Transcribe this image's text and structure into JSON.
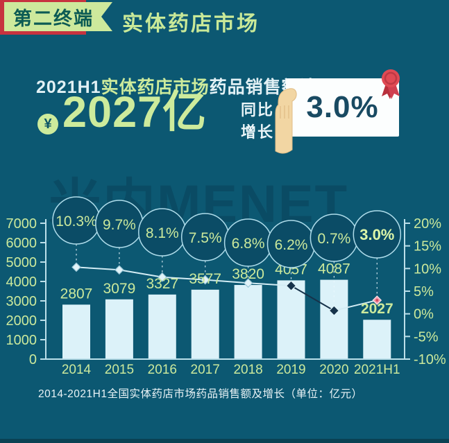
{
  "page": {
    "bg": "#0C5872",
    "accent_green": "#CBE99C",
    "bar_color": "#DCF2F9",
    "axis_color": "#BCE0EA",
    "red": "#C7333F",
    "line_light": "#D3ECF4",
    "line_dark": "#16324A",
    "marker_pink": "#F29BAD"
  },
  "header": {
    "tab_label": "第二终端",
    "title": "实体药店市场"
  },
  "stat": {
    "line1_prefix": "2021H1",
    "line1_highlight": "实体药店市场",
    "line1_suffix": "药品销售额达",
    "currency_symbol": "¥",
    "amount": "2027亿",
    "yoy_label_line1": "同比",
    "yoy_label_line2": "增长",
    "yoy_value": "3.0%"
  },
  "watermark": "米内MENET",
  "chart_data": {
    "type": "bar+line",
    "categories": [
      "2014",
      "2015",
      "2016",
      "2017",
      "2018",
      "2019",
      "2020",
      "2021H1"
    ],
    "series": [
      {
        "name": "药品销售额(亿元)",
        "type": "bar",
        "values": [
          2807,
          3079,
          3327,
          3577,
          3820,
          4057,
          4087,
          2027
        ]
      },
      {
        "name": "同比增长(%)",
        "type": "line",
        "values": [
          10.3,
          9.7,
          8.1,
          7.5,
          6.8,
          6.2,
          0.7,
          3.0
        ]
      }
    ],
    "bar_labels": [
      "2807",
      "3079",
      "3327",
      "3577",
      "3820",
      "4057",
      "4087",
      "2027"
    ],
    "bubble_labels": [
      "10.3%",
      "9.7%",
      "8.1%",
      "7.5%",
      "6.8%",
      "6.2%",
      "0.7%",
      "3.0%"
    ],
    "left_axis": {
      "min": 0,
      "max": 7000,
      "ticks": [
        "7000",
        "6000",
        "5000",
        "4000",
        "3000",
        "2000",
        "1000",
        "0"
      ]
    },
    "right_axis": {
      "min": -10,
      "max": 20,
      "ticks": [
        "20%",
        "15%",
        "10%",
        "5%",
        "0%",
        "-5%",
        "-10%"
      ]
    },
    "grid": false,
    "legend": false,
    "caption": "2014-2021H1全国实体药店市场药品销售额及增长（单位：亿元）"
  }
}
